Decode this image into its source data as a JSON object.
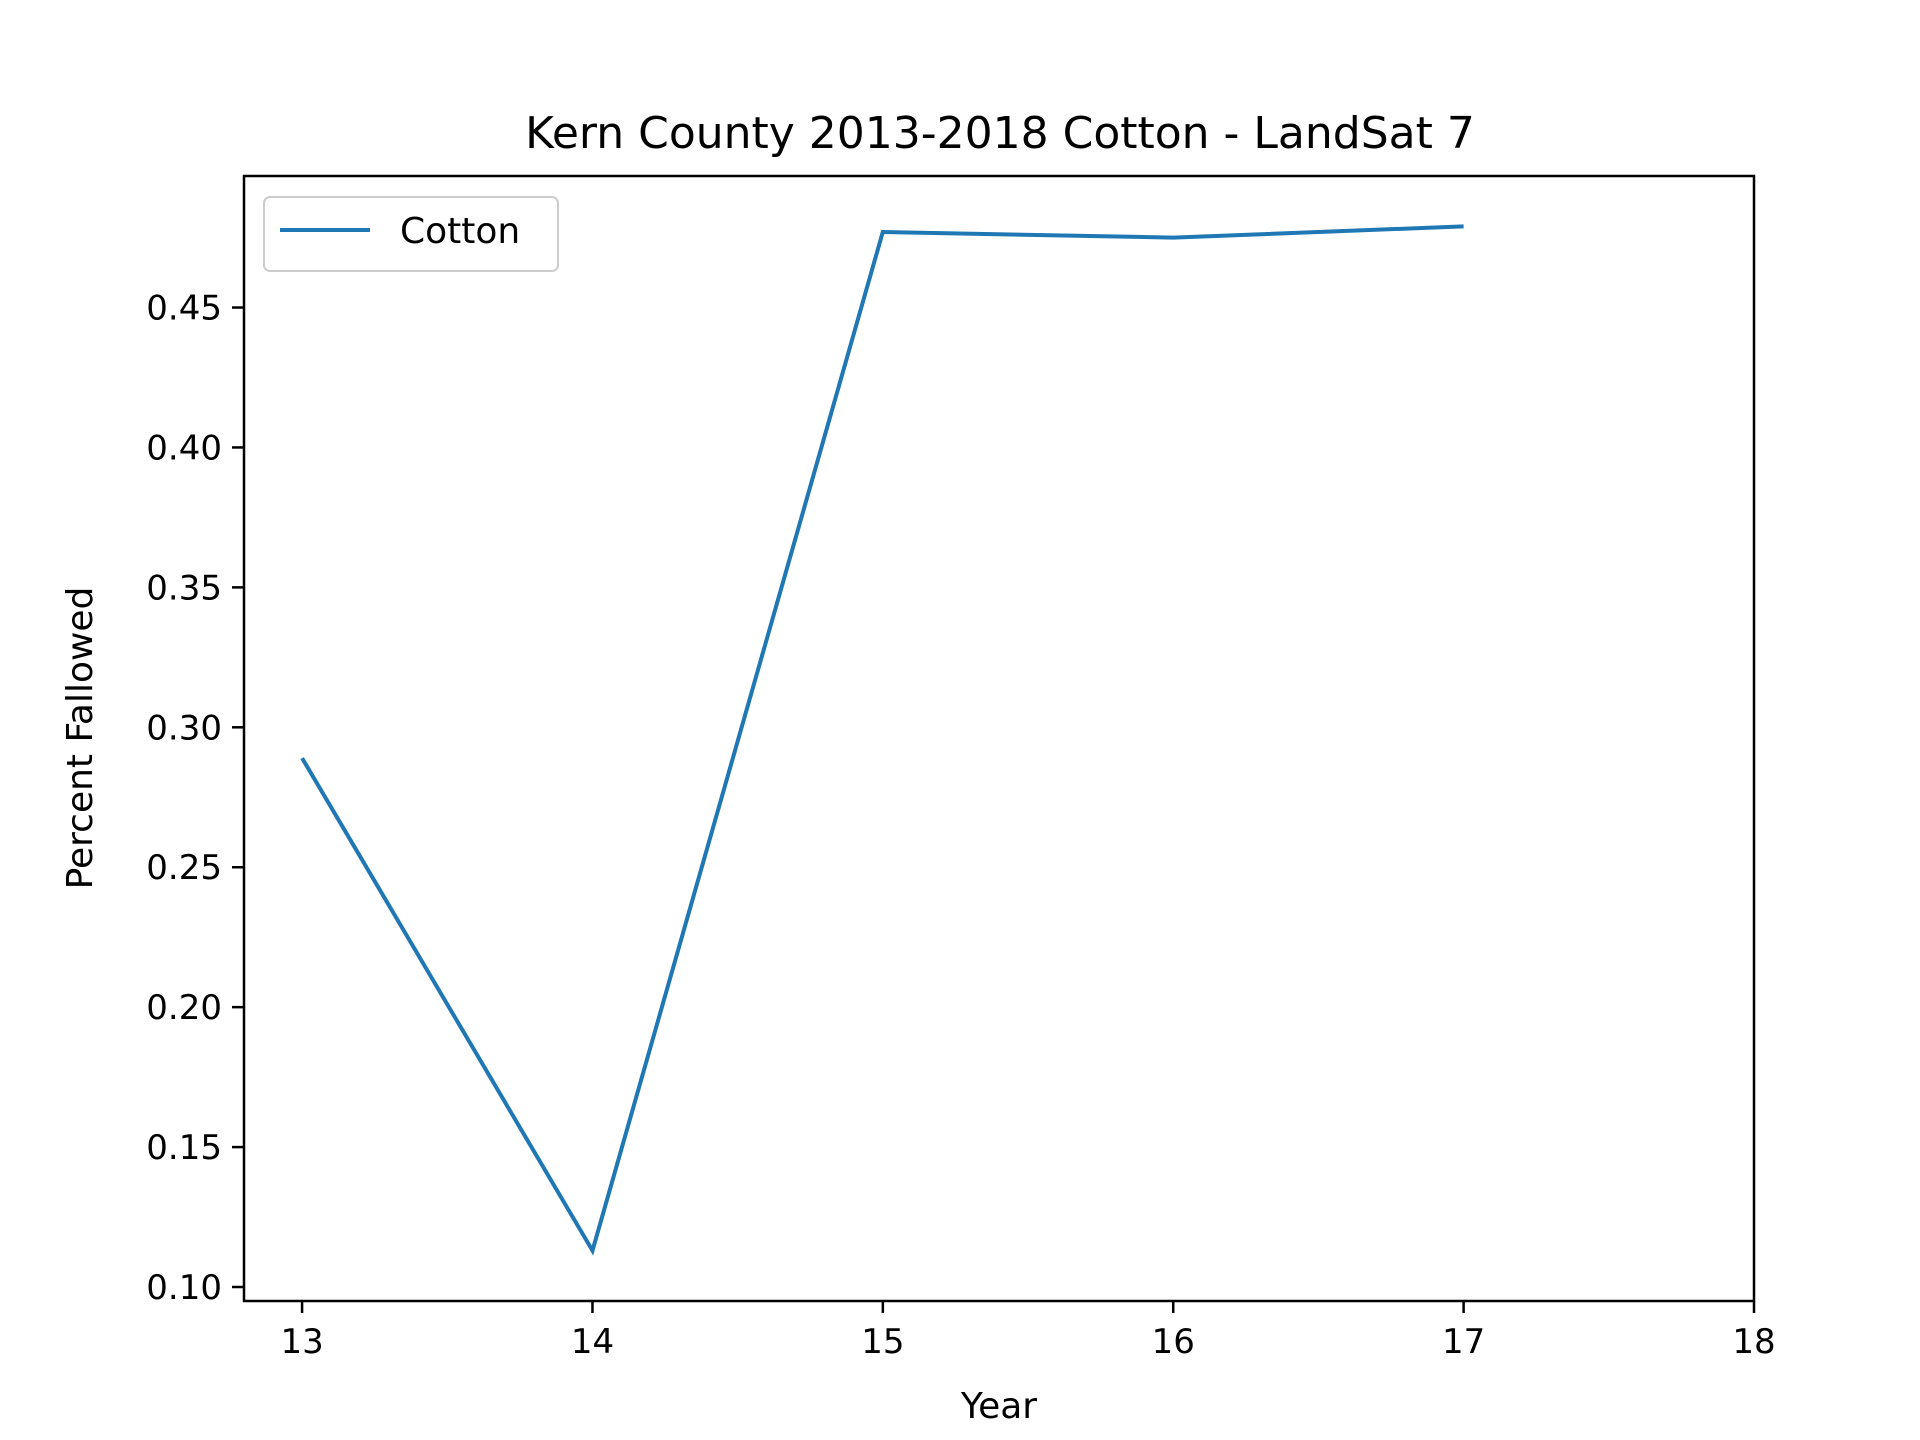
{
  "chart_data": {
    "type": "line",
    "title": "Kern County 2013-2018 Cotton - LandSat 7",
    "xlabel": "Year",
    "ylabel": "Percent Fallowed",
    "xlim": [
      12.8,
      18.0
    ],
    "ylim": [
      0.095,
      0.497
    ],
    "xticks": [
      13,
      14,
      15,
      16,
      17,
      18
    ],
    "xtick_labels": [
      "13",
      "14",
      "15",
      "16",
      "17",
      "18"
    ],
    "yticks": [
      0.1,
      0.15,
      0.2,
      0.25,
      0.3,
      0.35,
      0.4,
      0.45
    ],
    "ytick_labels": [
      "0.10",
      "0.15",
      "0.20",
      "0.25",
      "0.30",
      "0.35",
      "0.40",
      "0.45"
    ],
    "grid": false,
    "legend_position": "upper-left",
    "x": [
      13,
      14,
      15,
      16,
      17
    ],
    "series": [
      {
        "name": "Cotton",
        "color": "#1f77b4",
        "values": [
          0.289,
          0.113,
          0.477,
          0.475,
          0.479
        ]
      }
    ]
  }
}
